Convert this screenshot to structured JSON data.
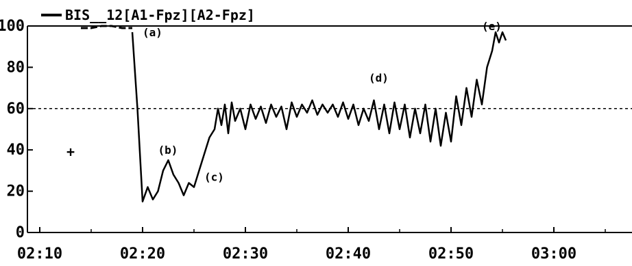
{
  "chart_data": {
    "type": "line",
    "legend": "BIS__12[A1-Fpz][A2-Fpz]",
    "x_ticks": [
      "02:10",
      "02:20",
      "02:30",
      "02:40",
      "02:50",
      "03:00"
    ],
    "y_ticks": [
      "0",
      "20",
      "40",
      "60",
      "80",
      "100"
    ],
    "xlim": [
      "02:10",
      "03:05"
    ],
    "ylim": [
      0,
      100
    ],
    "reference_line": 60,
    "colors": {
      "line": "#000000",
      "background": "#ffffff"
    },
    "series": [
      {
        "dashed_segment": [
          [
            "02:14",
            99
          ],
          [
            "02:15",
            99
          ],
          [
            "02:16",
            100
          ],
          [
            "02:17",
            100
          ],
          [
            "02:18",
            99
          ],
          [
            "02:19",
            99
          ]
        ],
        "points": [
          [
            "02:19",
            97
          ],
          [
            "02:19:30",
            60
          ],
          [
            "02:19:50",
            30
          ],
          [
            "02:20",
            15
          ],
          [
            "02:20:30",
            22
          ],
          [
            "02:21",
            16
          ],
          [
            "02:21:30",
            20
          ],
          [
            "02:22",
            30
          ],
          [
            "02:22:30",
            35
          ],
          [
            "02:23",
            28
          ],
          [
            "02:23:30",
            24
          ],
          [
            "02:24",
            18
          ],
          [
            "02:24:30",
            24
          ],
          [
            "02:25",
            22
          ],
          [
            "02:25:30",
            30
          ],
          [
            "02:26",
            38
          ],
          [
            "02:26:30",
            46
          ],
          [
            "02:27",
            50
          ],
          [
            "02:27:20",
            60
          ],
          [
            "02:27:40",
            52
          ],
          [
            "02:28",
            62
          ],
          [
            "02:28:20",
            48
          ],
          [
            "02:28:40",
            63
          ],
          [
            "02:29",
            54
          ],
          [
            "02:29:30",
            60
          ],
          [
            "02:30",
            50
          ],
          [
            "02:30:30",
            62
          ],
          [
            "02:31",
            55
          ],
          [
            "02:31:30",
            61
          ],
          [
            "02:32",
            53
          ],
          [
            "02:32:30",
            62
          ],
          [
            "02:33",
            56
          ],
          [
            "02:33:30",
            61
          ],
          [
            "02:34",
            50
          ],
          [
            "02:34:30",
            63
          ],
          [
            "02:35",
            56
          ],
          [
            "02:35:30",
            62
          ],
          [
            "02:36",
            58
          ],
          [
            "02:36:30",
            64
          ],
          [
            "02:37",
            57
          ],
          [
            "02:37:30",
            62
          ],
          [
            "02:38",
            58
          ],
          [
            "02:38:30",
            62
          ],
          [
            "02:39",
            56
          ],
          [
            "02:39:30",
            63
          ],
          [
            "02:40",
            55
          ],
          [
            "02:40:30",
            62
          ],
          [
            "02:41",
            52
          ],
          [
            "02:41:30",
            60
          ],
          [
            "02:42",
            54
          ],
          [
            "02:42:30",
            64
          ],
          [
            "02:43",
            50
          ],
          [
            "02:43:30",
            62
          ],
          [
            "02:44",
            48
          ],
          [
            "02:44:30",
            63
          ],
          [
            "02:45",
            50
          ],
          [
            "02:45:30",
            62
          ],
          [
            "02:46",
            46
          ],
          [
            "02:46:30",
            60
          ],
          [
            "02:47",
            48
          ],
          [
            "02:47:30",
            62
          ],
          [
            "02:48",
            44
          ],
          [
            "02:48:30",
            60
          ],
          [
            "02:49",
            42
          ],
          [
            "02:49:30",
            58
          ],
          [
            "02:50",
            44
          ],
          [
            "02:50:30",
            66
          ],
          [
            "02:51",
            52
          ],
          [
            "02:51:30",
            70
          ],
          [
            "02:52",
            56
          ],
          [
            "02:52:30",
            74
          ],
          [
            "02:53",
            62
          ],
          [
            "02:53:30",
            80
          ],
          [
            "02:54",
            88
          ],
          [
            "02:54:20",
            97
          ],
          [
            "02:54:40",
            92
          ],
          [
            "02:55",
            97
          ],
          [
            "02:55:20",
            93
          ]
        ]
      }
    ],
    "annotations": [
      {
        "text": "(a)",
        "x": "02:20:00",
        "y": 97
      },
      {
        "text": "(b)",
        "x": "02:21:30",
        "y": 40
      },
      {
        "text": "(c)",
        "x": "02:26:00",
        "y": 27
      },
      {
        "text": "(d)",
        "x": "02:42:00",
        "y": 75
      },
      {
        "text": "(e)",
        "x": "02:53:00",
        "y": 100
      }
    ],
    "marker": {
      "symbol": "+",
      "x": "02:13:00",
      "y": 39
    }
  }
}
